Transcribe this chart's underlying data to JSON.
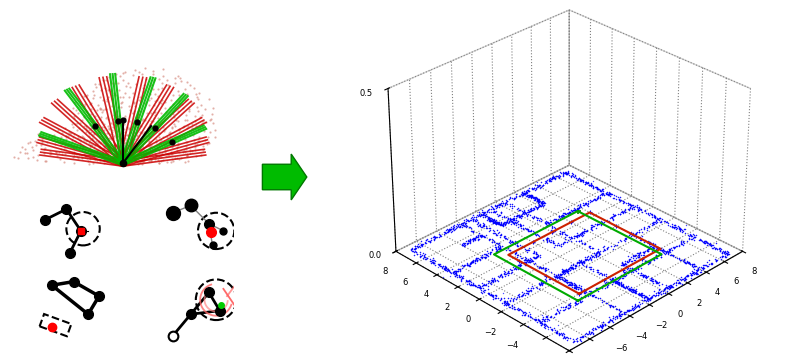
{
  "fig_width": 8.0,
  "fig_height": 3.54,
  "dpi": 100,
  "bg_color": "#ffffff",
  "box_border_color": "#4472c4",
  "scatter_xlim": [
    -10,
    8
  ],
  "scatter_ylim": [
    -8,
    8
  ],
  "scatter_zlim": [
    0,
    0.5
  ]
}
